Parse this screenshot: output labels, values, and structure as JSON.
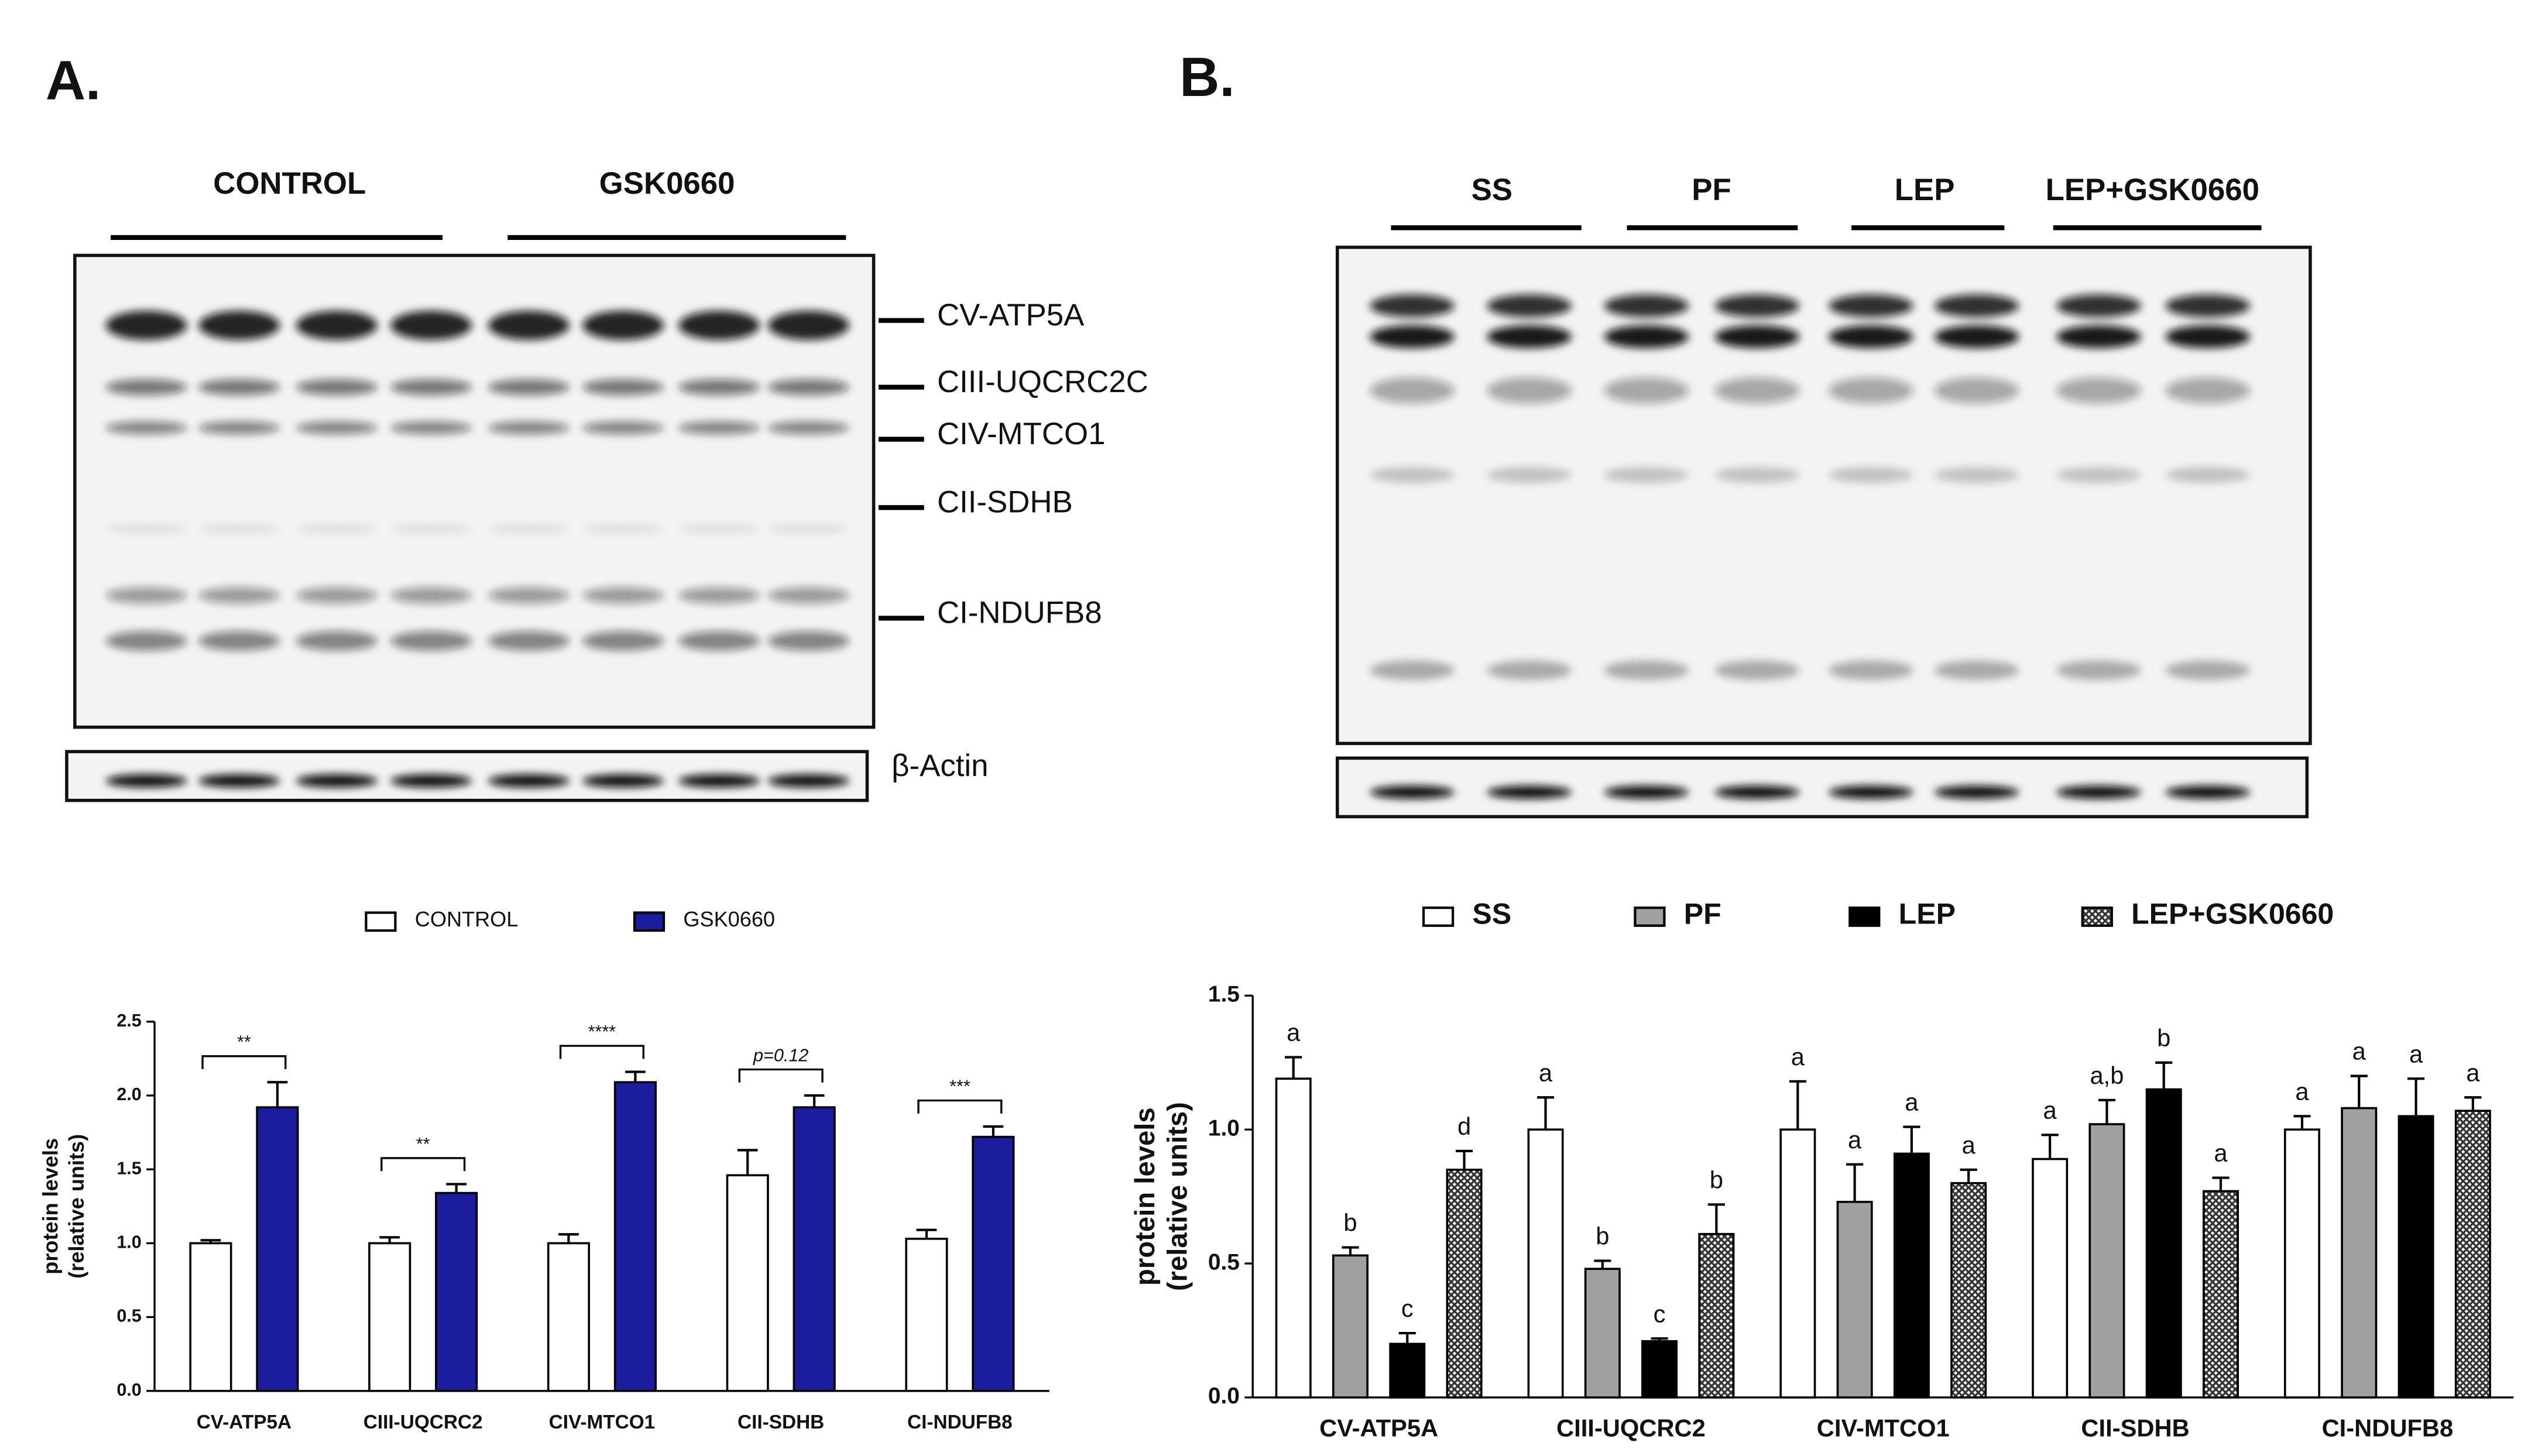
{
  "blots": [
    {
      "panel": "A.",
      "groups": [
        "CONTROL",
        "GSK0660"
      ],
      "proteins": [
        "CV-ATP5A",
        "CIII-UQCRC2C",
        "CIV-MTCO1",
        "CII-SDHB",
        "CI-NDUFB8"
      ],
      "loading_control": "β-Actin"
    },
    {
      "panel": "B.",
      "groups": [
        "SS",
        "PF",
        "LEP",
        "LEP+GSK0660"
      ]
    }
  ],
  "chart_data": [
    {
      "type": "bar",
      "ylabel": [
        "protein levels",
        "(relative units)"
      ],
      "categories": [
        "CV-ATP5A",
        "CIII-UQCRC2",
        "CIV-MTCO1",
        "CII-SDHB",
        "CI-NDUFB8"
      ],
      "series": [
        {
          "name": "CONTROL",
          "color": "#ffffff",
          "values": [
            1.0,
            1.0,
            1.0,
            1.46,
            1.03
          ],
          "errors": [
            0.02,
            0.04,
            0.06,
            0.17,
            0.06
          ]
        },
        {
          "name": "GSK0660",
          "color": "#1c1c9e",
          "values": [
            1.92,
            1.34,
            2.09,
            1.92,
            1.72
          ],
          "errors": [
            0.17,
            0.06,
            0.07,
            0.08,
            0.07
          ]
        }
      ],
      "significance": [
        "**",
        "**",
        "****",
        "p=0.12",
        "***"
      ],
      "ylim": [
        0,
        2.5
      ],
      "yticks": [
        {
          "value": 0,
          "label": "0.0"
        },
        0.5,
        {
          "value": 1,
          "label": "1.0"
        },
        1.5,
        {
          "value": 2,
          "label": "2.0"
        },
        2.5
      ]
    },
    {
      "type": "bar",
      "ylabel": [
        "protein levels",
        "(relative units)"
      ],
      "categories": [
        "CV-ATP5A",
        "CIII-UQCRC2",
        "CIV-MTCO1",
        "CII-SDHB",
        "CI-NDUFB8"
      ],
      "series": [
        {
          "name": "SS",
          "color": "#ffffff",
          "values": [
            1.19,
            1.0,
            1.0,
            0.89,
            1.0
          ],
          "errors": [
            0.08,
            0.12,
            0.18,
            0.09,
            0.05
          ],
          "annotations": [
            "a",
            "a",
            "a",
            "a",
            "a"
          ]
        },
        {
          "name": "PF",
          "color": "#a0a0a0",
          "values": [
            0.53,
            0.48,
            0.73,
            1.02,
            1.08
          ],
          "errors": [
            0.03,
            0.03,
            0.14,
            0.09,
            0.12
          ],
          "annotations": [
            "b",
            "b",
            "a",
            "a,b",
            "a"
          ]
        },
        {
          "name": "LEP",
          "color": "#000000",
          "values": [
            0.2,
            0.21,
            0.91,
            1.15,
            1.05
          ],
          "errors": [
            0.04,
            0.01,
            0.1,
            0.1,
            0.14
          ],
          "annotations": [
            "c",
            "c",
            "a",
            "b",
            "a"
          ]
        },
        {
          "name": "LEP+GSK0660",
          "color": "#555555",
          "hatch": true,
          "values": [
            0.85,
            0.61,
            0.8,
            0.77,
            1.07
          ],
          "errors": [
            0.07,
            0.11,
            0.05,
            0.05,
            0.05
          ],
          "annotations": [
            "d",
            "b",
            "a",
            "a",
            "a"
          ]
        }
      ],
      "ylim": [
        0,
        1.5
      ],
      "yticks": [
        {
          "value": 0,
          "label": "0.0"
        },
        0.5,
        {
          "value": 1,
          "label": "1.0"
        },
        1.5
      ]
    }
  ]
}
